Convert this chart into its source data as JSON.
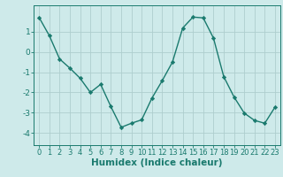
{
  "x": [
    0,
    1,
    2,
    3,
    4,
    5,
    6,
    7,
    8,
    9,
    10,
    11,
    12,
    13,
    14,
    15,
    16,
    17,
    18,
    19,
    20,
    21,
    22,
    23
  ],
  "y": [
    1.7,
    0.8,
    -0.35,
    -0.8,
    -1.3,
    -2.0,
    -1.6,
    -2.7,
    -3.72,
    -3.52,
    -3.35,
    -2.28,
    -1.42,
    -0.5,
    1.18,
    1.72,
    1.68,
    0.68,
    -1.22,
    -2.22,
    -3.02,
    -3.38,
    -3.52,
    -2.72
  ],
  "line_color": "#1a7a6e",
  "marker": "D",
  "marker_size": 2.2,
  "bg_color": "#ceeaea",
  "grid_color": "#aecece",
  "xlabel": "Humidex (Indice chaleur)",
  "ylim": [
    -4.6,
    2.3
  ],
  "xlim": [
    -0.5,
    23.5
  ],
  "yticks": [
    -4,
    -3,
    -2,
    -1,
    0,
    1
  ],
  "xticks": [
    0,
    1,
    2,
    3,
    4,
    5,
    6,
    7,
    8,
    9,
    10,
    11,
    12,
    13,
    14,
    15,
    16,
    17,
    18,
    19,
    20,
    21,
    22,
    23
  ],
  "tick_color": "#1a7a6e",
  "xlabel_fontsize": 7.5,
  "tick_fontsize": 6.0,
  "ytick_fontsize": 6.5
}
